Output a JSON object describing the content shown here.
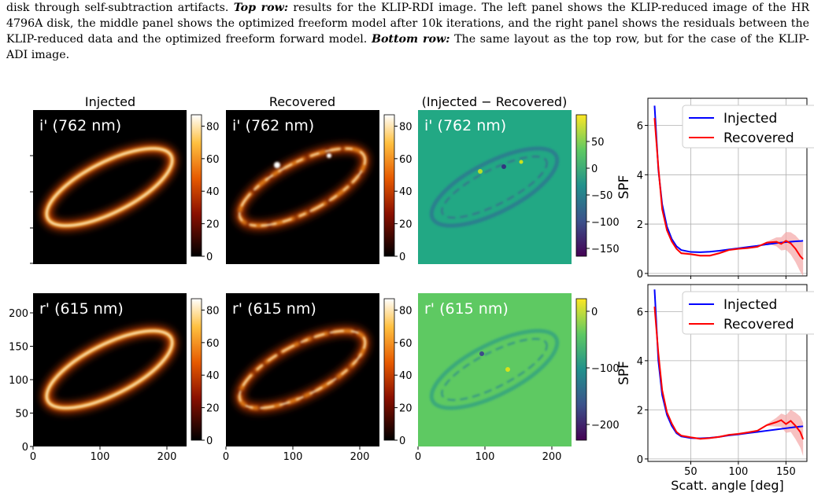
{
  "caption": {
    "line1": "disk through self-subtraction artifacts.",
    "top_row_label": "Top row:",
    "top_row_text": "results for the KLIP-RDI image. The left panel shows the KLIP-reduced image of the HR 4796A disk, the middle panel shows the optimized freeform model after 10k iterations, and the right panel shows the residuals between the KLIP-reduced data and the optimized freeform forward model.",
    "bottom_row_label": "Bottom row:",
    "bottom_row_text": "The same layout as the top row, but for the case of the KLIP-ADI image."
  },
  "colors": {
    "injected": "#0000ff",
    "recovered": "#ff0000",
    "recovered_band": "#f4a6a6",
    "grid": "#b0b0b0"
  },
  "column_titles": [
    "Injected",
    "Recovered",
    "(Injected − Recovered)"
  ],
  "band_labels": [
    "i' (762 nm)",
    "r' (615 nm)"
  ],
  "colorbars": {
    "row1": [
      [
        "0",
        "20",
        "40",
        "60",
        "80"
      ],
      [
        "0",
        "20",
        "40",
        "60",
        "80"
      ],
      [
        "−150",
        "−100",
        "−50",
        "0",
        "50"
      ]
    ],
    "row2": [
      [
        "0",
        "20",
        "40",
        "60",
        "80"
      ],
      [
        "0",
        "20",
        "40",
        "60",
        "80"
      ],
      [
        "−200",
        "−100",
        "0"
      ]
    ]
  },
  "image_axes": {
    "x_ticks": [
      "0",
      "100",
      "200"
    ],
    "y_ticks": [
      "0",
      "50",
      "100",
      "150",
      "200"
    ]
  },
  "chart_data": [
    {
      "type": "line",
      "xlabel": "",
      "ylabel": "SPF",
      "xlim": [
        5,
        172
      ],
      "ylim": [
        -0.1,
        7.1
      ],
      "x_ticks": [],
      "y_ticks": [
        "0",
        "2",
        "4",
        "6"
      ],
      "grid": true,
      "legend": "top-right",
      "series": [
        {
          "name": "Injected",
          "x": [
            12,
            16,
            20,
            25,
            30,
            35,
            40,
            50,
            60,
            70,
            80,
            90,
            100,
            110,
            120,
            130,
            140,
            150,
            160,
            168
          ],
          "y": [
            6.8,
            4.2,
            2.8,
            1.9,
            1.4,
            1.1,
            0.95,
            0.87,
            0.86,
            0.88,
            0.92,
            0.97,
            1.02,
            1.07,
            1.12,
            1.18,
            1.23,
            1.27,
            1.3,
            1.32
          ]
        },
        {
          "name": "Recovered",
          "x": [
            12,
            16,
            20,
            25,
            30,
            35,
            40,
            50,
            60,
            70,
            80,
            90,
            100,
            110,
            120,
            130,
            140,
            145,
            150,
            155,
            160,
            165,
            168
          ],
          "y": [
            6.3,
            4.3,
            2.6,
            1.75,
            1.3,
            1.0,
            0.82,
            0.78,
            0.72,
            0.72,
            0.82,
            0.95,
            1.0,
            1.03,
            1.08,
            1.25,
            1.28,
            1.2,
            1.32,
            1.22,
            1.0,
            0.7,
            0.58
          ]
        }
      ]
    },
    {
      "type": "line",
      "xlabel": "Scatt. angle [deg]",
      "ylabel": "SPF",
      "xlim": [
        5,
        172
      ],
      "ylim": [
        -0.1,
        7.1
      ],
      "x_ticks": [
        "50",
        "100",
        "150"
      ],
      "y_ticks": [
        "0",
        "2",
        "4",
        "6"
      ],
      "grid": true,
      "legend": "top-right",
      "series": [
        {
          "name": "Injected",
          "x": [
            12,
            16,
            20,
            25,
            30,
            35,
            40,
            50,
            60,
            70,
            80,
            90,
            100,
            110,
            120,
            130,
            140,
            150,
            160,
            168
          ],
          "y": [
            6.9,
            4.0,
            2.6,
            1.8,
            1.35,
            1.05,
            0.92,
            0.85,
            0.84,
            0.86,
            0.9,
            0.96,
            1.0,
            1.05,
            1.1,
            1.15,
            1.2,
            1.25,
            1.3,
            1.33
          ]
        },
        {
          "name": "Recovered",
          "x": [
            12,
            16,
            20,
            25,
            30,
            35,
            40,
            50,
            60,
            70,
            80,
            90,
            100,
            110,
            120,
            130,
            140,
            145,
            150,
            155,
            160,
            165,
            168
          ],
          "y": [
            6.2,
            4.3,
            2.8,
            1.9,
            1.45,
            1.1,
            0.95,
            0.88,
            0.82,
            0.85,
            0.9,
            0.98,
            1.02,
            1.08,
            1.15,
            1.38,
            1.5,
            1.58,
            1.42,
            1.55,
            1.35,
            1.1,
            0.8
          ]
        }
      ]
    }
  ]
}
